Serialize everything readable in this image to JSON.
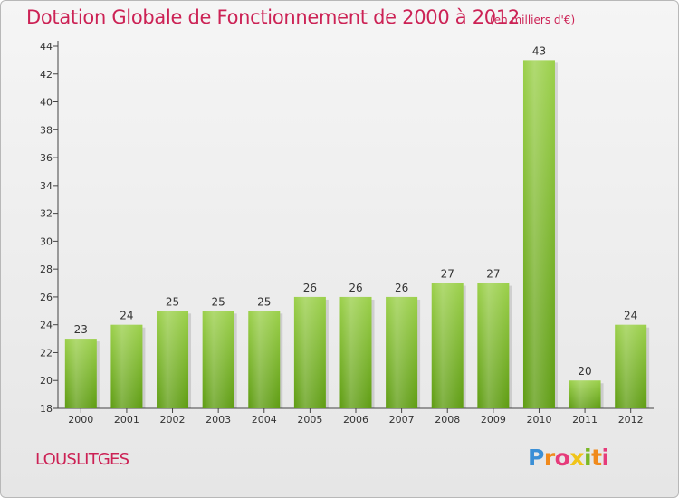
{
  "chart_data": {
    "type": "bar",
    "title": "Dotation Globale de Fonctionnement de 2000 à 2012",
    "subtitle": "(en milliers d'€)",
    "categories": [
      "2000",
      "2001",
      "2002",
      "2003",
      "2004",
      "2005",
      "2006",
      "2007",
      "2008",
      "2009",
      "2010",
      "2011",
      "2012"
    ],
    "values": [
      23,
      24,
      25,
      25,
      25,
      26,
      26,
      26,
      27,
      27,
      43,
      20,
      24
    ],
    "ylim": [
      18,
      44
    ],
    "yticks": [
      18,
      20,
      22,
      24,
      26,
      28,
      30,
      32,
      34,
      36,
      38,
      40,
      42,
      44
    ],
    "grid": "none",
    "bar_color": "#7cb82a"
  },
  "footer": {
    "location": "LOUSLITGES",
    "logo_text": "Proxiti"
  }
}
